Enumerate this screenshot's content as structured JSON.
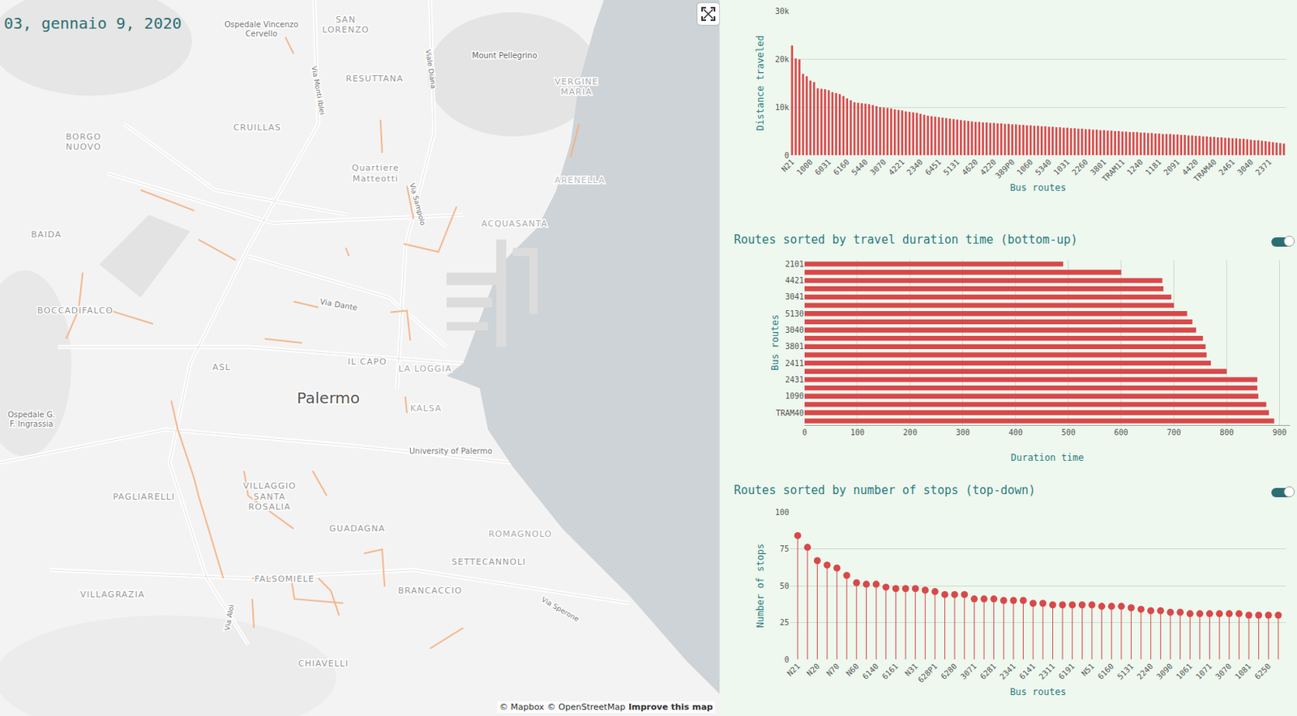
{
  "map": {
    "date": "03, gennaio 9, 2020",
    "place_labels": [
      [
        "Ospedale Vincenzo",
        "Cervello"
      ],
      [
        "SAN",
        "LORENZO"
      ],
      [
        "Via Monti Iblei"
      ],
      [
        "Viale Diana"
      ],
      [
        "Mount Pellegrino"
      ],
      [
        "RESUTTANA"
      ],
      [
        "VERGINE",
        "MARIA"
      ],
      [
        "CRUILLAS"
      ],
      [
        "BORGO",
        "NUOVO"
      ],
      [
        "Quartiere",
        "Matteotti"
      ],
      [
        "Via Sampolo"
      ],
      [
        "ARENELLA"
      ],
      [
        "ACQUASANTA"
      ],
      [
        "BAIDA"
      ],
      [
        "BOCCADIFALCO"
      ],
      [
        "Via Dante"
      ],
      [
        "IL CAPO"
      ],
      [
        "LA LOGGIA"
      ],
      [
        "ASL"
      ],
      [
        "Palermo"
      ],
      [
        "Ospedale G.",
        "F. Ingrassia"
      ],
      [
        "KALSA"
      ],
      [
        "University of Palermo"
      ],
      [
        "PAGLIARELLI"
      ],
      [
        "VILLAGGIO",
        "SANTA",
        "ROSALIA"
      ],
      [
        "GUADAGNA"
      ],
      [
        "ROMAGNOLO"
      ],
      [
        "SETTECANNOLI"
      ],
      [
        "FALSOMIELE"
      ],
      [
        "BRANCACCIO"
      ],
      [
        "Via Sperone"
      ],
      [
        "VILLAGRAZIA"
      ],
      [
        "Via Aloi"
      ],
      [
        "CHIAVELLI"
      ]
    ],
    "attribution": [
      "© Mapbox",
      "© OpenStreetMap",
      "Improve this map"
    ]
  },
  "chart_data": [
    {
      "type": "bar",
      "x_label": "Bus routes",
      "y_label": "Distance traveled",
      "color": "#d9484a",
      "grid": true,
      "categories": [
        "N21",
        null,
        null,
        null,
        null,
        "1000",
        null,
        null,
        null,
        null,
        "6031",
        null,
        null,
        null,
        null,
        "6160",
        null,
        null,
        null,
        null,
        "5440",
        null,
        null,
        null,
        null,
        "3070",
        null,
        null,
        null,
        null,
        "4221",
        null,
        null,
        null,
        null,
        "2340",
        null,
        null,
        null,
        null,
        "6451",
        null,
        null,
        null,
        null,
        "5131",
        null,
        null,
        null,
        null,
        "4620",
        null,
        null,
        null,
        null,
        "4220",
        null,
        null,
        null,
        null,
        "389P0",
        null,
        null,
        null,
        null,
        "1060",
        null,
        null,
        null,
        null,
        "5340",
        null,
        null,
        null,
        null,
        "1031",
        null,
        null,
        null,
        null,
        "2260",
        null,
        null,
        null,
        null,
        "3801",
        null,
        null,
        null,
        null,
        "TRAM11",
        null,
        null,
        null,
        null,
        "1240",
        null,
        null,
        null,
        null,
        "1181",
        null,
        null,
        null,
        null,
        "2091",
        null,
        null,
        null,
        null,
        "4420",
        null,
        null,
        null,
        null,
        "TRAM40",
        null,
        null,
        null,
        null,
        "2461",
        null,
        null,
        null,
        null,
        "3040",
        null,
        null,
        null,
        null,
        "2371",
        null,
        null,
        null,
        null
      ],
      "values": [
        22800,
        20100,
        19900,
        16900,
        16400,
        15500,
        15200,
        13900,
        13800,
        13700,
        13500,
        13100,
        12900,
        12700,
        12300,
        11800,
        11400,
        11000,
        10900,
        10800,
        10700,
        10600,
        10400,
        10200,
        10000,
        9900,
        9800,
        9700,
        9500,
        9400,
        9300,
        9100,
        9000,
        8900,
        8800,
        8600,
        8400,
        8200,
        8100,
        8000,
        7900,
        7800,
        7700,
        7600,
        7500,
        7400,
        7300,
        7200,
        7100,
        7000,
        6900,
        6900,
        6800,
        6800,
        6700,
        6700,
        6600,
        6600,
        6500,
        6500,
        6400,
        6400,
        6300,
        6300,
        6200,
        6200,
        6100,
        6100,
        6000,
        6000,
        5900,
        5900,
        5800,
        5800,
        5700,
        5700,
        5600,
        5600,
        5500,
        5500,
        5400,
        5400,
        5300,
        5300,
        5200,
        5200,
        5100,
        5100,
        5000,
        5000,
        4900,
        4900,
        4800,
        4800,
        4800,
        4700,
        4700,
        4600,
        4600,
        4500,
        4500,
        4400,
        4400,
        4400,
        4300,
        4300,
        4200,
        4200,
        4100,
        4100,
        4000,
        4000,
        3900,
        3900,
        3800,
        3800,
        3700,
        3700,
        3600,
        3600,
        3500,
        3500,
        3400,
        3400,
        3300,
        3200,
        3100,
        3100,
        3000,
        2900,
        2800,
        2700,
        2600,
        2500,
        2400
      ],
      "ylim": [
        0,
        30000
      ],
      "yticks": [
        0,
        {
          "value": 10000,
          "label": "10k"
        },
        {
          "value": 20000,
          "label": "20k"
        },
        {
          "value": 30000,
          "label": "30k"
        }
      ]
    },
    {
      "type": "bar",
      "orientation": "horizontal",
      "title": "Routes sorted by travel duration time (bottom-up)",
      "x_label": "Duration time",
      "y_label": "Bus routes",
      "color": "#d9484a",
      "grid": true,
      "categories": [
        "2101",
        null,
        "4421",
        null,
        "3041",
        null,
        "5130",
        null,
        "3040",
        null,
        "3801",
        null,
        "2411",
        null,
        "2431",
        null,
        "1090",
        null,
        "TRAM40",
        null
      ],
      "values": [
        490,
        600,
        678,
        680,
        695,
        700,
        725,
        735,
        742,
        755,
        760,
        762,
        770,
        800,
        858,
        858,
        860,
        875,
        880,
        890
      ],
      "xlim": [
        0,
        920
      ],
      "xticks": [
        0,
        100,
        200,
        300,
        400,
        500,
        600,
        700,
        800,
        900
      ]
    },
    {
      "type": "lollipop",
      "title": "Routes sorted by number of stops (top-down)",
      "x_label": "Bus routes",
      "y_label": "Number of stops",
      "color": "#d9484a",
      "marker": "circle",
      "grid": true,
      "categories": [
        "N21",
        null,
        "N20",
        null,
        "N70",
        null,
        "N60",
        null,
        "6140",
        null,
        "6161",
        null,
        "N31",
        null,
        "628P1",
        null,
        "6280",
        null,
        "3071",
        null,
        "6281",
        null,
        "2341",
        null,
        "6141",
        null,
        "2311",
        null,
        "6191",
        null,
        "N51",
        null,
        "6160",
        null,
        "5131",
        null,
        "2240",
        null,
        "3090",
        null,
        "1061",
        null,
        "1071",
        null,
        "3070",
        null,
        "1081",
        null,
        "6250",
        null
      ],
      "values": [
        84,
        76,
        67,
        64,
        62,
        57,
        52,
        51,
        51,
        49,
        48,
        48,
        48,
        47,
        46,
        44,
        44,
        44,
        41,
        41,
        41,
        40,
        40,
        40,
        38,
        38,
        37,
        37,
        37,
        37,
        37,
        36,
        36,
        36,
        35,
        34,
        33,
        33,
        32,
        32,
        31,
        31,
        31,
        31,
        31,
        31,
        30,
        30,
        30,
        30
      ],
      "ylim": [
        0,
        100
      ],
      "yticks": [
        0,
        25,
        50,
        75,
        100
      ]
    }
  ]
}
